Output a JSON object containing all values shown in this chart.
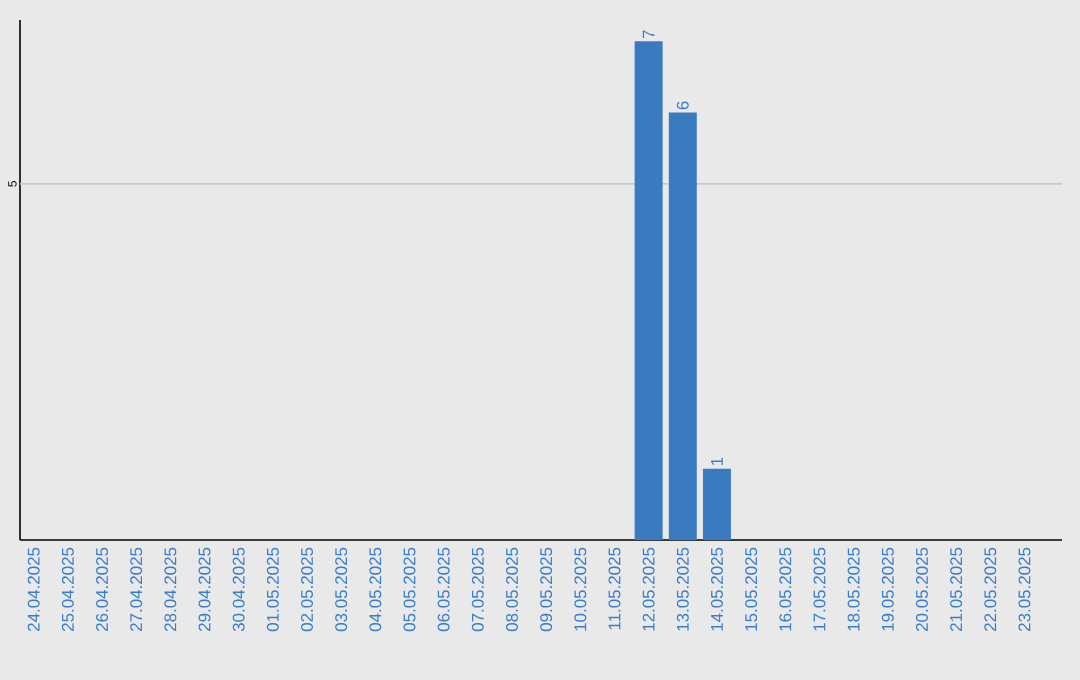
{
  "chart_data": {
    "type": "bar",
    "categories": [
      "24.04.2025",
      "25.04.2025",
      "26.04.2025",
      "27.04.2025",
      "28.04.2025",
      "29.04.2025",
      "30.04.2025",
      "01.05.2025",
      "02.05.2025",
      "03.05.2025",
      "04.05.2025",
      "05.05.2025",
      "06.05.2025",
      "07.05.2025",
      "08.05.2025",
      "09.05.2025",
      "10.05.2025",
      "11.05.2025",
      "12.05.2025",
      "13.05.2025",
      "14.05.2025",
      "15.05.2025",
      "16.05.2025",
      "17.05.2025",
      "18.05.2025",
      "19.05.2025",
      "20.05.2025",
      "21.05.2025",
      "22.05.2025",
      "23.05.2025"
    ],
    "values": [
      null,
      null,
      null,
      null,
      null,
      null,
      null,
      null,
      null,
      null,
      null,
      null,
      null,
      null,
      null,
      null,
      null,
      null,
      7,
      6,
      1,
      null,
      null,
      null,
      null,
      null,
      null,
      null,
      null,
      null
    ],
    "value_labels": [
      null,
      null,
      null,
      null,
      null,
      null,
      null,
      null,
      null,
      null,
      null,
      null,
      null,
      null,
      null,
      null,
      null,
      null,
      "7",
      "6",
      "1",
      null,
      null,
      null,
      null,
      null,
      null,
      null,
      null,
      null
    ],
    "color": "#3a7bbf",
    "ylim": [
      0,
      7.3
    ],
    "ref_lines": [
      {
        "axis": "y",
        "value": 5,
        "label": "5",
        "color": "#c8c8c8"
      }
    ]
  }
}
